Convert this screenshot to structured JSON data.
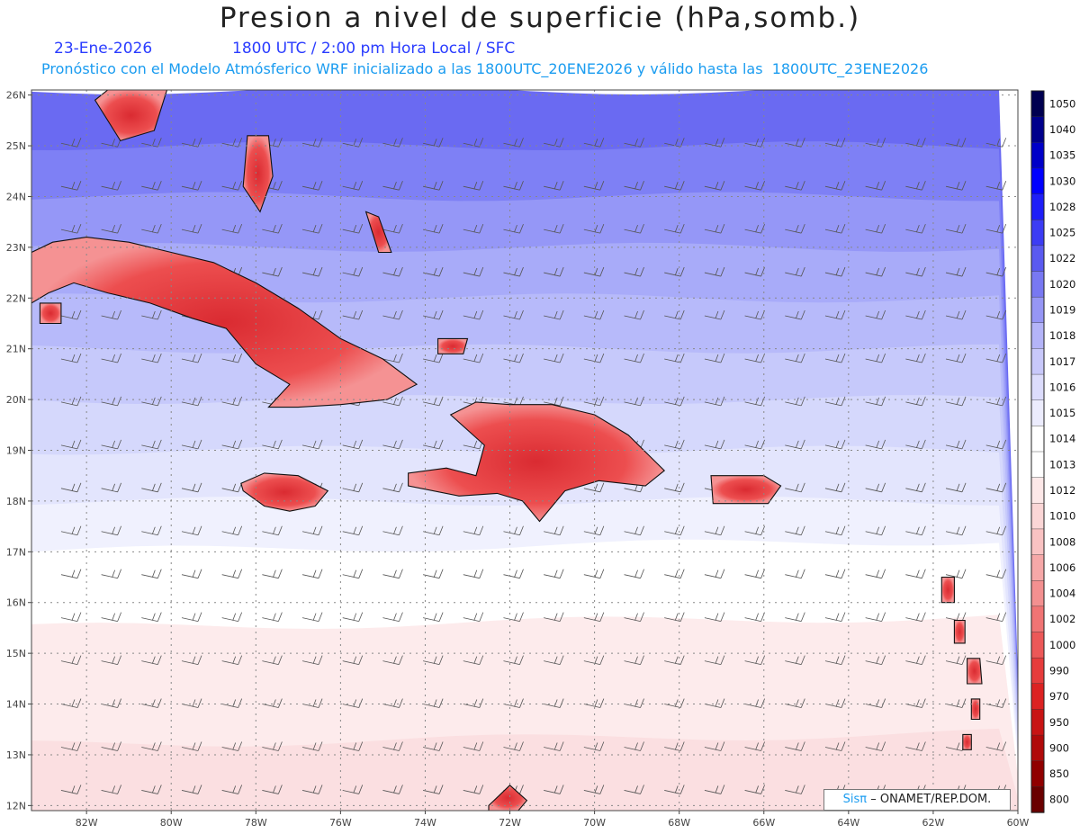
{
  "title": "Presion a nivel de superficie (hPa,somb.)",
  "date": "23-Ene-2026",
  "time_label": "1800 UTC / 2:00 pm Hora Local / SFC",
  "forecast_label": "Pronóstico con el Modelo Atmósferico WRF inicializado a las 1800UTC_20ENE2026 y válido hasta las  1800UTC_23ENE2026",
  "credit": {
    "brand": "Sisπ",
    "org": "– ONAMET/REP.DOM."
  },
  "colors": {
    "island_high": "#e8262a",
    "low_land": "#ffffff",
    "coast": "#111111"
  },
  "map": {
    "lon_range": [
      -83.3,
      -60
    ],
    "lat_range": [
      11.9,
      26.1
    ],
    "lon_ticks": [
      {
        "lon": -82,
        "label": "82W"
      },
      {
        "lon": -80,
        "label": "80W"
      },
      {
        "lon": -78,
        "label": "78W"
      },
      {
        "lon": -76,
        "label": "76W"
      },
      {
        "lon": -74,
        "label": "74W"
      },
      {
        "lon": -72,
        "label": "72W"
      },
      {
        "lon": -70,
        "label": "70W"
      },
      {
        "lon": -68,
        "label": "68W"
      },
      {
        "lon": -66,
        "label": "66W"
      },
      {
        "lon": -64,
        "label": "64W"
      },
      {
        "lon": -62,
        "label": "62W"
      },
      {
        "lon": -60,
        "label": "60W"
      }
    ],
    "lat_ticks": [
      {
        "lat": 26,
        "label": "26N"
      },
      {
        "lat": 25,
        "label": "25N"
      },
      {
        "lat": 24,
        "label": "24N"
      },
      {
        "lat": 23,
        "label": "23N"
      },
      {
        "lat": 22,
        "label": "22N"
      },
      {
        "lat": 21,
        "label": "21N"
      },
      {
        "lat": 20,
        "label": "20N"
      },
      {
        "lat": 19,
        "label": "19N"
      },
      {
        "lat": 18,
        "label": "18N"
      },
      {
        "lat": 17,
        "label": "17N"
      },
      {
        "lat": 16,
        "label": "16N"
      },
      {
        "lat": 15,
        "label": "15N"
      },
      {
        "lat": 14,
        "label": "14N"
      },
      {
        "lat": 13,
        "label": "13N"
      },
      {
        "lat": 12,
        "label": "12N"
      }
    ]
  },
  "pressure_bands": [
    {
      "lat": 26.1,
      "color": "#6a6af2"
    },
    {
      "lat": 25.0,
      "color": "#7e80f5"
    },
    {
      "lat": 24.0,
      "color": "#9597f7"
    },
    {
      "lat": 23.0,
      "color": "#a8abf9"
    },
    {
      "lat": 22.0,
      "color": "#b7bafa"
    },
    {
      "lat": 21.0,
      "color": "#c6c9fb"
    },
    {
      "lat": 20.0,
      "color": "#d5d8fc"
    },
    {
      "lat": 19.0,
      "color": "#e3e5fd"
    },
    {
      "lat": 18.0,
      "color": "#f0f1fe"
    },
    {
      "lat": 17.0,
      "color": "#ffffff"
    },
    {
      "lat": 15.5,
      "color": "#fdebec"
    },
    {
      "lat": 13.2,
      "color": "#fbdfe1"
    }
  ],
  "islands": [
    {
      "name": "Cuba",
      "points": [
        [
          -83.3,
          22.9
        ],
        [
          -82.8,
          23.1
        ],
        [
          -82.0,
          23.2
        ],
        [
          -81.0,
          23.1
        ],
        [
          -80.0,
          22.9
        ],
        [
          -79.0,
          22.7
        ],
        [
          -78.0,
          22.3
        ],
        [
          -77.0,
          21.8
        ],
        [
          -76.0,
          21.2
        ],
        [
          -75.0,
          20.8
        ],
        [
          -74.2,
          20.3
        ],
        [
          -74.9,
          20.0
        ],
        [
          -76.0,
          19.9
        ],
        [
          -77.0,
          19.85
        ],
        [
          -77.7,
          19.85
        ],
        [
          -77.2,
          20.3
        ],
        [
          -78.0,
          20.7
        ],
        [
          -78.7,
          21.4
        ],
        [
          -79.5,
          21.6
        ],
        [
          -80.5,
          21.9
        ],
        [
          -81.5,
          22.1
        ],
        [
          -82.3,
          22.3
        ],
        [
          -82.9,
          22.1
        ],
        [
          -83.3,
          21.9
        ]
      ]
    },
    {
      "name": "Jamaica",
      "points": [
        [
          -78.35,
          18.35
        ],
        [
          -77.8,
          18.55
        ],
        [
          -77.0,
          18.5
        ],
        [
          -76.3,
          18.2
        ],
        [
          -76.6,
          17.9
        ],
        [
          -77.2,
          17.8
        ],
        [
          -77.8,
          17.9
        ],
        [
          -78.3,
          18.2
        ]
      ]
    },
    {
      "name": "Hispaniola",
      "points": [
        [
          -74.4,
          18.55
        ],
        [
          -73.5,
          18.65
        ],
        [
          -72.8,
          18.5
        ],
        [
          -72.6,
          19.1
        ],
        [
          -73.4,
          19.7
        ],
        [
          -72.8,
          19.95
        ],
        [
          -72.0,
          19.9
        ],
        [
          -71.0,
          19.9
        ],
        [
          -70.0,
          19.7
        ],
        [
          -69.2,
          19.3
        ],
        [
          -68.35,
          18.6
        ],
        [
          -68.8,
          18.3
        ],
        [
          -69.9,
          18.4
        ],
        [
          -70.7,
          18.2
        ],
        [
          -71.3,
          17.6
        ],
        [
          -71.7,
          18.0
        ],
        [
          -72.3,
          18.15
        ],
        [
          -73.2,
          18.1
        ],
        [
          -74.4,
          18.3
        ]
      ]
    },
    {
      "name": "Puerto Rico",
      "points": [
        [
          -67.25,
          18.5
        ],
        [
          -66.0,
          18.5
        ],
        [
          -65.6,
          18.3
        ],
        [
          -65.9,
          17.95
        ],
        [
          -67.2,
          17.95
        ]
      ]
    },
    {
      "name": "Andros",
      "points": [
        [
          -78.2,
          25.2
        ],
        [
          -77.7,
          25.2
        ],
        [
          -77.6,
          24.4
        ],
        [
          -77.9,
          23.7
        ],
        [
          -78.3,
          24.2
        ]
      ]
    },
    {
      "name": "Long Island",
      "points": [
        [
          -75.4,
          23.7
        ],
        [
          -75.1,
          23.6
        ],
        [
          -74.8,
          22.9
        ],
        [
          -75.1,
          22.9
        ]
      ]
    },
    {
      "name": "Great Inagua",
      "points": [
        [
          -73.7,
          21.2
        ],
        [
          -73.0,
          21.2
        ],
        [
          -73.1,
          20.9
        ],
        [
          -73.7,
          20.9
        ]
      ]
    },
    {
      "name": "Isla de la Juventud",
      "points": [
        [
          -83.1,
          21.9
        ],
        [
          -82.6,
          21.9
        ],
        [
          -82.6,
          21.5
        ],
        [
          -83.1,
          21.5
        ]
      ]
    },
    {
      "name": "Guadeloupe",
      "points": [
        [
          -61.8,
          16.5
        ],
        [
          -61.5,
          16.5
        ],
        [
          -61.5,
          16.0
        ],
        [
          -61.8,
          16.0
        ]
      ]
    },
    {
      "name": "Martinique",
      "points": [
        [
          -61.2,
          14.9
        ],
        [
          -60.9,
          14.9
        ],
        [
          -60.85,
          14.4
        ],
        [
          -61.2,
          14.4
        ]
      ]
    },
    {
      "name": "St Lucia",
      "points": [
        [
          -61.1,
          14.1
        ],
        [
          -60.9,
          14.1
        ],
        [
          -60.9,
          13.7
        ],
        [
          -61.1,
          13.7
        ]
      ]
    },
    {
      "name": "Dominica",
      "points": [
        [
          -61.5,
          15.65
        ],
        [
          -61.25,
          15.65
        ],
        [
          -61.25,
          15.2
        ],
        [
          -61.5,
          15.2
        ]
      ]
    },
    {
      "name": "St Vincent",
      "points": [
        [
          -61.3,
          13.4
        ],
        [
          -61.1,
          13.4
        ],
        [
          -61.1,
          13.1
        ],
        [
          -61.3,
          13.1
        ]
      ]
    },
    {
      "name": "Venezuela coast",
      "points": [
        [
          -72.5,
          12.0
        ],
        [
          -72.0,
          12.4
        ],
        [
          -71.6,
          12.1
        ],
        [
          -71.8,
          11.9
        ],
        [
          -72.5,
          11.9
        ]
      ]
    },
    {
      "name": "Florida",
      "points": [
        [
          -81.5,
          26.1
        ],
        [
          -80.1,
          26.1
        ],
        [
          -80.4,
          25.3
        ],
        [
          -81.2,
          25.1
        ],
        [
          -81.8,
          25.9
        ]
      ]
    }
  ],
  "legend": {
    "labels": [
      "1050",
      "1040",
      "1035",
      "1030",
      "1028",
      "1025",
      "1022",
      "1020",
      "1019",
      "1018",
      "1017",
      "1016",
      "1015",
      "1014",
      "1013",
      "1012",
      "1010",
      "1008",
      "1006",
      "1004",
      "1002",
      "1000",
      "990",
      "970",
      "950",
      "900",
      "850",
      "800"
    ],
    "colors": [
      "#000050",
      "#00008c",
      "#0000c8",
      "#0000ff",
      "#1e1ef8",
      "#3c3cf4",
      "#5a5af0",
      "#7878f2",
      "#9696f5",
      "#b4b4f8",
      "#c8c8fa",
      "#dcdcfc",
      "#ececfd",
      "#ffffff",
      "#ffffff",
      "#fde8e8",
      "#fbd6d6",
      "#f9c2c2",
      "#f6a8a8",
      "#f39090",
      "#f07474",
      "#ec5858",
      "#e63c3c",
      "#dc2222",
      "#c81414",
      "#b00a0a",
      "#900000",
      "#6a0000"
    ]
  }
}
